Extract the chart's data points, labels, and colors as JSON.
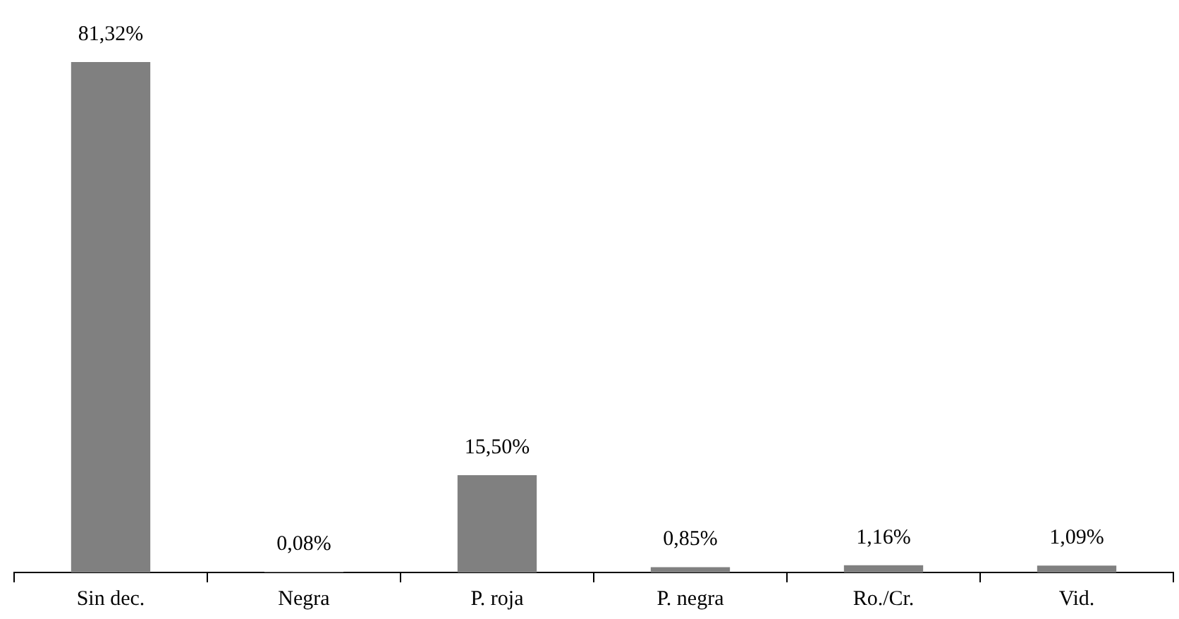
{
  "chart_data": {
    "type": "bar",
    "categories": [
      "Sin dec.",
      "Negra",
      "P. roja",
      "P. negra",
      "Ro./Cr.",
      "Vid."
    ],
    "values": [
      81.32,
      0.08,
      15.5,
      0.85,
      1.16,
      1.09
    ],
    "value_labels": [
      "81,32%",
      "0,08%",
      "15,50%",
      "0,85%",
      "1,16%",
      "1,09%"
    ],
    "color": "#808080",
    "grid": false,
    "legend": false
  }
}
